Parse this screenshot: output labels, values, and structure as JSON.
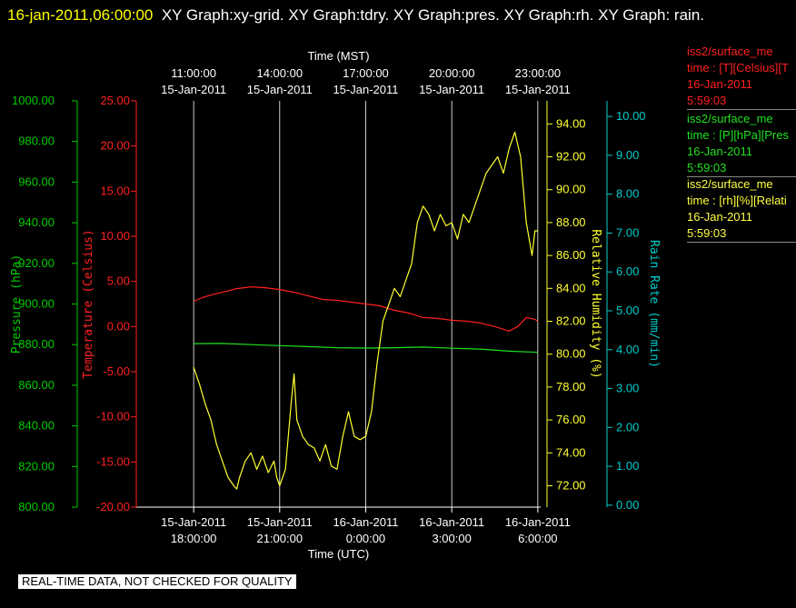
{
  "header": {
    "timestamp": "16-jan-2011,06:00:00",
    "graphs": "XY Graph:xy-grid.  XY Graph:tdry.  XY Graph:pres.  XY Graph:rh.  XY Graph: rain."
  },
  "notice": "REAL-TIME DATA, NOT CHECKED FOR QUALITY",
  "legend": [
    {
      "line1": "iss2/surface_me",
      "line2": "time : [T][Celsius][T",
      "line3": "16-Jan-2011",
      "line4": "5:59:03",
      "color": "#ff2020"
    },
    {
      "line1": "iss2/surface_me",
      "line2": "time : [P][hPa][Pres",
      "line3": "16-Jan-2011",
      "line4": "5:59:03",
      "color": "#20e020"
    },
    {
      "line1": "iss2/surface_me",
      "line2": "time : [rh][%][Relati",
      "line3": "16-Jan-2011",
      "line4": "5:59:03",
      "color": "#ffff40"
    }
  ],
  "chart_data": {
    "type": "line",
    "x_unit": "hours since 15-Jan-2011 18:00 UTC",
    "x_range": [
      -2.0,
      12.1
    ],
    "top_axis": {
      "label": "Time (MST)",
      "ticks": [
        {
          "l1": "11:00:00",
          "l2": "15-Jan-2011",
          "x": 0
        },
        {
          "l1": "14:00:00",
          "l2": "15-Jan-2011",
          "x": 3
        },
        {
          "l1": "17:00:00",
          "l2": "15-Jan-2011",
          "x": 6
        },
        {
          "l1": "20:00:00",
          "l2": "15-Jan-2011",
          "x": 9
        },
        {
          "l1": "23:00:00",
          "l2": "15-Jan-2011",
          "x": 12
        }
      ]
    },
    "bottom_axis": {
      "label": "Time (UTC)",
      "ticks": [
        {
          "l1": "15-Jan-2011",
          "l2": "18:00:00",
          "x": 0
        },
        {
          "l1": "15-Jan-2011",
          "l2": "21:00:00",
          "x": 3
        },
        {
          "l1": "16-Jan-2011",
          "l2": "0:00:00",
          "x": 6
        },
        {
          "l1": "16-Jan-2011",
          "l2": "3:00:00",
          "x": 9
        },
        {
          "l1": "16-Jan-2011",
          "l2": "6:00:00",
          "x": 12
        }
      ]
    },
    "y_axes": [
      {
        "id": "pres",
        "label": "Pressure (hPa)",
        "color": "#00cc00",
        "min": 800,
        "max": 1000,
        "ticks": [
          "800.00",
          "820.00",
          "840.00",
          "860.00",
          "880.00",
          "900.00",
          "920.00",
          "940.00",
          "960.00",
          "980.00",
          "1000.00"
        ]
      },
      {
        "id": "tdry",
        "label": "Temperature (Celsius)",
        "color": "#ff2020",
        "min": -20,
        "max": 25,
        "ticks": [
          "-20.00",
          "-15.00",
          "-10.00",
          "-5.00",
          "0.00",
          "5.00",
          "10.00",
          "15.00",
          "20.00",
          "25.00"
        ]
      },
      {
        "id": "rh",
        "label": "Relative Humidity (%)",
        "color": "#ffff30",
        "min": 70.7,
        "max": 95.4,
        "ticks": [
          "72.00",
          "74.00",
          "76.00",
          "78.00",
          "80.00",
          "82.00",
          "84.00",
          "86.00",
          "88.00",
          "90.00",
          "92.00",
          "94.00"
        ]
      },
      {
        "id": "rain",
        "label": "Rain Rate (mm/min)",
        "color": "#00cccc",
        "min": -0.05,
        "max": 10.4,
        "ticks": [
          "0.00",
          "1.00",
          "2.00",
          "3.00",
          "4.00",
          "5.00",
          "6.00",
          "7.00",
          "8.00",
          "9.00",
          "10.00"
        ]
      }
    ],
    "series": [
      {
        "id": "tdry",
        "color": "#ff2020",
        "x": [
          0,
          0.3,
          0.6,
          1.0,
          1.5,
          2.0,
          2.5,
          3.0,
          3.5,
          4.0,
          4.5,
          5.0,
          5.5,
          6.0,
          6.5,
          7.0,
          7.5,
          8.0,
          8.5,
          9.0,
          9.5,
          10.0,
          10.5,
          11.0,
          11.3,
          11.6,
          11.9,
          12.0
        ],
        "y": [
          2.8,
          3.2,
          3.5,
          3.8,
          4.2,
          4.4,
          4.3,
          4.1,
          3.8,
          3.4,
          3.0,
          2.9,
          2.7,
          2.5,
          2.3,
          1.8,
          1.5,
          1.0,
          0.9,
          0.7,
          0.6,
          0.4,
          0.0,
          -0.5,
          0.0,
          1.0,
          0.8,
          0.6
        ]
      },
      {
        "id": "pres",
        "color": "#20e020",
        "x": [
          0,
          1,
          2,
          3,
          4,
          5,
          6,
          7,
          8,
          9,
          10,
          11,
          12
        ],
        "y": [
          880.5,
          880.6,
          880.0,
          879.5,
          879.0,
          878.5,
          878.3,
          878.5,
          878.8,
          878.2,
          877.8,
          876.8,
          876.2
        ]
      },
      {
        "id": "rh",
        "color": "#ffff30",
        "x": [
          0,
          0.2,
          0.4,
          0.6,
          0.8,
          1.0,
          1.2,
          1.4,
          1.5,
          1.6,
          1.8,
          2.0,
          2.2,
          2.4,
          2.6,
          2.8,
          2.9,
          3.0,
          3.2,
          3.4,
          3.5,
          3.6,
          3.8,
          4.0,
          4.2,
          4.4,
          4.6,
          4.8,
          5.0,
          5.2,
          5.4,
          5.6,
          5.8,
          6.0,
          6.2,
          6.4,
          6.6,
          6.8,
          7.0,
          7.2,
          7.4,
          7.6,
          7.8,
          8.0,
          8.2,
          8.4,
          8.6,
          8.8,
          9.0,
          9.2,
          9.4,
          9.6,
          9.8,
          10.0,
          10.2,
          10.4,
          10.6,
          10.8,
          11.0,
          11.2,
          11.4,
          11.6,
          11.8,
          11.9,
          12.0
        ],
        "y": [
          79.2,
          78.2,
          77.0,
          76.0,
          74.5,
          73.5,
          72.5,
          72.0,
          71.8,
          72.5,
          73.5,
          74.0,
          73.0,
          73.8,
          72.8,
          73.5,
          72.5,
          72.0,
          73.0,
          77.0,
          78.8,
          76.0,
          75.0,
          74.5,
          74.3,
          73.5,
          74.5,
          73.2,
          73.0,
          75.0,
          76.5,
          75.0,
          74.8,
          75.0,
          76.5,
          79.5,
          82.0,
          83.0,
          84.0,
          83.5,
          84.5,
          85.5,
          88.0,
          89.0,
          88.5,
          87.5,
          88.5,
          87.8,
          88.0,
          87.0,
          88.5,
          88.0,
          89.0,
          90.0,
          91.0,
          91.5,
          92.0,
          91.0,
          92.5,
          93.5,
          92.0,
          88.0,
          86.0,
          87.5,
          87.5
        ]
      },
      {
        "id": "rain",
        "color": "#00cccc",
        "x": [],
        "y": []
      }
    ]
  }
}
